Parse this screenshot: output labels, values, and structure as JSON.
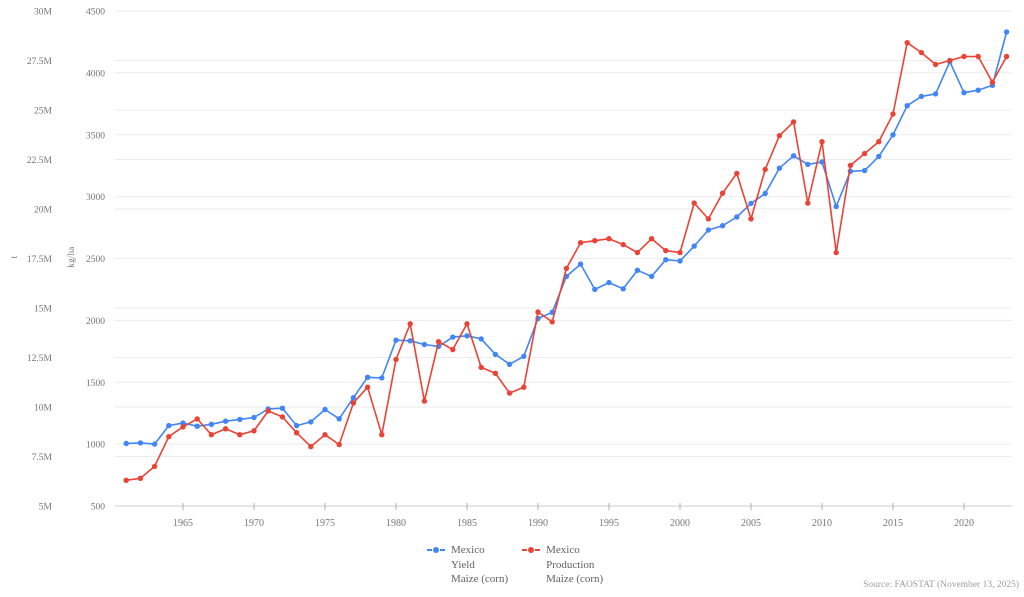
{
  "chart_data": {
    "type": "line",
    "title": "",
    "grid": true,
    "legend_position": "bottom",
    "x": [
      1961,
      1962,
      1963,
      1964,
      1965,
      1966,
      1967,
      1968,
      1969,
      1970,
      1971,
      1972,
      1973,
      1974,
      1975,
      1976,
      1977,
      1978,
      1979,
      1980,
      1981,
      1982,
      1983,
      1984,
      1985,
      1986,
      1987,
      1988,
      1989,
      1990,
      1991,
      1992,
      1993,
      1994,
      1995,
      1996,
      1997,
      1998,
      1999,
      2000,
      2001,
      2002,
      2003,
      2004,
      2005,
      2006,
      2007,
      2008,
      2009,
      2010,
      2011,
      2012,
      2013,
      2014,
      2015,
      2016,
      2017,
      2018,
      2019,
      2020,
      2021,
      2022,
      2023
    ],
    "series": [
      {
        "id": "yield",
        "name": "Mexico Yield Maize (corn)",
        "axis": "kg/ha",
        "unit": "kg/ha",
        "color": "#4285f4",
        "values": [
          1005,
          1010,
          1000,
          1150,
          1170,
          1145,
          1160,
          1185,
          1200,
          1215,
          1285,
          1290,
          1150,
          1180,
          1280,
          1205,
          1375,
          1540,
          1535,
          1840,
          1835,
          1805,
          1790,
          1865,
          1875,
          1850,
          1725,
          1645,
          1710,
          2015,
          2065,
          2355,
          2455,
          2250,
          2305,
          2255,
          2405,
          2355,
          2490,
          2480,
          2600,
          2730,
          2765,
          2835,
          2945,
          3025,
          3230,
          3330,
          3260,
          3280,
          2920,
          3205,
          3210,
          3325,
          3500,
          3735,
          3810,
          3830,
          4090,
          3840,
          3860,
          3900,
          4330
        ]
      },
      {
        "id": "production",
        "name": "Mexico Production Maize (corn)",
        "axis": "t",
        "unit": "million t",
        "color": "#ea4335",
        "values": [
          6.3,
          6.4,
          7.0,
          8.5,
          9.0,
          9.4,
          8.6,
          8.9,
          8.6,
          8.8,
          9.8,
          9.5,
          8.7,
          8.0,
          8.6,
          8.1,
          10.2,
          11.0,
          8.6,
          12.4,
          14.2,
          10.3,
          13.3,
          12.9,
          14.2,
          12.0,
          11.7,
          10.7,
          11.0,
          14.8,
          14.3,
          17.0,
          18.3,
          18.4,
          18.5,
          18.2,
          17.8,
          18.5,
          17.9,
          17.8,
          20.3,
          19.5,
          20.8,
          21.8,
          19.5,
          22.0,
          23.7,
          24.4,
          20.3,
          23.4,
          17.8,
          22.2,
          22.8,
          23.4,
          24.8,
          28.4,
          27.9,
          27.3,
          27.5,
          27.7,
          27.7,
          26.4,
          27.7
        ]
      }
    ],
    "y_axis_t": {
      "title": "t",
      "tick_values": [
        5,
        7.5,
        10,
        12.5,
        15,
        17.5,
        20,
        22.5,
        25,
        27.5,
        30
      ],
      "tick_labels": [
        "5M",
        "7.5M",
        "10M",
        "12.5M",
        "15M",
        "17.5M",
        "20M",
        "22.5M",
        "25M",
        "27.5M",
        "30M"
      ],
      "range_millions": [
        5,
        30
      ]
    },
    "y_axis_kgha": {
      "title": "kg/ha",
      "tick_values": [
        500,
        1000,
        1500,
        2000,
        2500,
        3000,
        3500,
        4000,
        4500
      ],
      "tick_labels": [
        "500",
        "1000",
        "1500",
        "2000",
        "2500",
        "3000",
        "3500",
        "4000",
        "4500"
      ],
      "range": [
        500,
        4500
      ]
    },
    "x_axis": {
      "tick_values": [
        1965,
        1970,
        1975,
        1980,
        1985,
        1990,
        1995,
        2000,
        2005,
        2010,
        2015,
        2020
      ],
      "range": [
        1961,
        2023
      ]
    }
  },
  "legend": {
    "entries": [
      {
        "series": "yield",
        "color": "#4285f4",
        "lines": [
          "Mexico",
          "Yield",
          "Maize (corn)"
        ]
      },
      {
        "series": "production",
        "color": "#ea4335",
        "lines": [
          "Mexico",
          "Production",
          "Maize (corn)"
        ]
      }
    ]
  },
  "source_note": "Source: FAOSTAT (November 13, 2025)",
  "colors": {
    "grid": "#ebebeb",
    "axis_line": "#cccccc",
    "tick_mark": "#b0b0b0",
    "tick_label": "#757575",
    "legend_text": "#616161",
    "source_text": "#9e9e9e"
  }
}
